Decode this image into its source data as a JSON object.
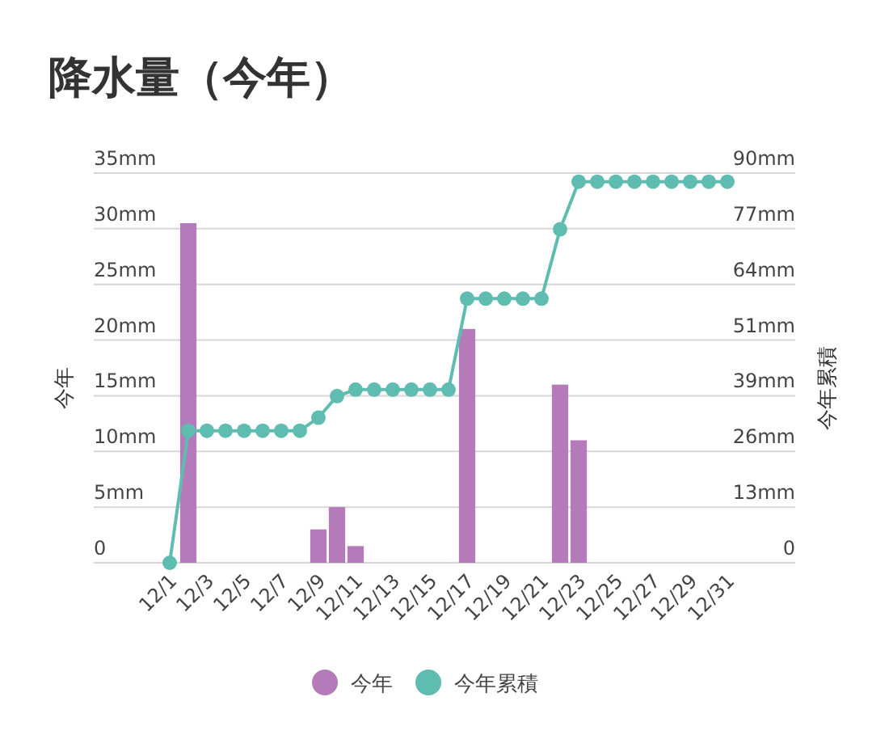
{
  "chart_data": {
    "type": "bar",
    "title": "降水量（今年）",
    "ylabel": "今年",
    "y2label": "今年累積",
    "categories": [
      "12/1",
      null,
      "12/3",
      null,
      "12/5",
      null,
      "12/7",
      null,
      "12/9",
      null,
      "12/11",
      null,
      "12/13",
      null,
      "12/15",
      null,
      "12/17",
      null,
      "12/19",
      null,
      "12/21",
      null,
      "12/23",
      null,
      "12/25",
      null,
      "12/27",
      null,
      "12/29",
      null,
      "12/31"
    ],
    "series": [
      {
        "name": "今年",
        "color": "#b57aba",
        "values": [
          0,
          30.5,
          0,
          0,
          0,
          0,
          0,
          0,
          3,
          5,
          1.5,
          0,
          0,
          0,
          0,
          0,
          21,
          0,
          0,
          0,
          0,
          16,
          11,
          0,
          0,
          0,
          0,
          0,
          0,
          0,
          0
        ]
      },
      {
        "name": "今年累積",
        "type": "line",
        "axis": "y2",
        "color": "#5fbcb0",
        "marker": "circle",
        "values": [
          0,
          30.5,
          30.5,
          30.5,
          30.5,
          30.5,
          30.5,
          30.5,
          33.5,
          38.5,
          40,
          40,
          40,
          40,
          40,
          40,
          61,
          61,
          61,
          61,
          61,
          77,
          88,
          88,
          88,
          88,
          88,
          88,
          88,
          88,
          88
        ]
      }
    ],
    "ylim": [
      0,
      35
    ],
    "yticks": [
      0,
      {
        "value": 5,
        "label": "5mm"
      },
      {
        "value": 10,
        "label": "10mm"
      },
      {
        "value": 15,
        "label": "15mm"
      },
      {
        "value": 20,
        "label": "20mm"
      },
      {
        "value": 25,
        "label": "25mm"
      },
      {
        "value": 30,
        "label": "30mm"
      },
      {
        "value": 35,
        "label": "35mm"
      }
    ],
    "y2lim": [
      0,
      90
    ],
    "y2ticks": [
      0,
      {
        "value": 12.857,
        "label": "13mm"
      },
      {
        "value": 25.714,
        "label": "26mm"
      },
      {
        "value": 38.571,
        "label": "39mm"
      },
      {
        "value": 51.429,
        "label": "51mm"
      },
      {
        "value": 64.286,
        "label": "64mm"
      },
      {
        "value": 77.143,
        "label": "77mm"
      },
      {
        "value": 90,
        "label": "90mm"
      }
    ],
    "grid": "y",
    "legend": "bottom"
  }
}
